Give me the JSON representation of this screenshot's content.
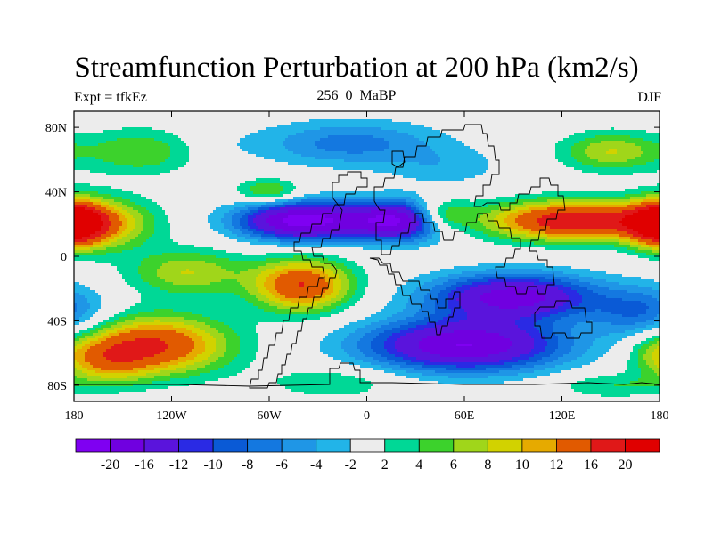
{
  "title": "Streamfunction Perturbation at 200 hPa (km2/s)",
  "left_label": "Expt = tfkEz",
  "center_label": "256_0_MaBP",
  "right_label": "DJF",
  "chart_data": {
    "type": "heatmap",
    "projection": "cylindrical-equidistant",
    "lon_range": [
      -180,
      180
    ],
    "lat_range": [
      -90,
      90
    ],
    "x_ticks": [
      {
        "value": -180,
        "label": "180"
      },
      {
        "value": -120,
        "label": "120W"
      },
      {
        "value": -60,
        "label": "60W"
      },
      {
        "value": 0,
        "label": "0"
      },
      {
        "value": 60,
        "label": "60E"
      },
      {
        "value": 120,
        "label": "120E"
      },
      {
        "value": 180,
        "label": "180"
      }
    ],
    "y_ticks": [
      {
        "value": 80,
        "label": "80N"
      },
      {
        "value": 40,
        "label": "40N"
      },
      {
        "value": 0,
        "label": "0"
      },
      {
        "value": -40,
        "label": "40S"
      },
      {
        "value": -80,
        "label": "80S"
      }
    ],
    "colorbar": {
      "placement": "bottom",
      "labels": [
        "-20",
        "-16",
        "-12",
        "-10",
        "-8",
        "-6",
        "-4",
        "-2",
        "2",
        "4",
        "6",
        "8",
        "10",
        "12",
        "16",
        "20"
      ],
      "colors": [
        "#7f00f2",
        "#7000e0",
        "#5a14dc",
        "#2a2ae4",
        "#0a5ad6",
        "#1478e0",
        "#1f96e6",
        "#22b4e8",
        "#ececec",
        "#00d896",
        "#3cd22c",
        "#a0d61a",
        "#d2d200",
        "#e6aa00",
        "#e15a00",
        "#e01818",
        "#e00000"
      ]
    },
    "field_centers": [
      {
        "lon": -180,
        "lat": 20,
        "value": 18,
        "lon_radius": 18,
        "lat_radius": 14
      },
      {
        "lon": -160,
        "lat": 20,
        "value": 9,
        "lon_radius": 30,
        "lat_radius": 16
      },
      {
        "lon": -140,
        "lat": 65,
        "value": 6,
        "lon_radius": 35,
        "lat_radius": 14
      },
      {
        "lon": -90,
        "lat": 68,
        "value": -1,
        "lon_radius": 25,
        "lat_radius": 12
      },
      {
        "lon": -60,
        "lat": 40,
        "value": 7,
        "lon_radius": 20,
        "lat_radius": 8
      },
      {
        "lon": -40,
        "lat": 22,
        "value": -22,
        "lon_radius": 38,
        "lat_radius": 12
      },
      {
        "lon": 20,
        "lat": 22,
        "value": -20,
        "lon_radius": 30,
        "lat_radius": 12
      },
      {
        "lon": -10,
        "lat": 70,
        "value": -7,
        "lon_radius": 55,
        "lat_radius": 14
      },
      {
        "lon": 50,
        "lat": 55,
        "value": -3,
        "lon_radius": 35,
        "lat_radius": 12
      },
      {
        "lon": 150,
        "lat": 65,
        "value": 8,
        "lon_radius": 30,
        "lat_radius": 12
      },
      {
        "lon": 130,
        "lat": 22,
        "value": 20,
        "lon_radius": 55,
        "lat_radius": 12
      },
      {
        "lon": 45,
        "lat": 25,
        "value": 10,
        "lon_radius": 18,
        "lat_radius": 10
      },
      {
        "lon": -40,
        "lat": -18,
        "value": 16,
        "lon_radius": 30,
        "lat_radius": 16
      },
      {
        "lon": -110,
        "lat": -10,
        "value": 8,
        "lon_radius": 35,
        "lat_radius": 14
      },
      {
        "lon": -130,
        "lat": -55,
        "value": 16,
        "lon_radius": 45,
        "lat_radius": 18
      },
      {
        "lon": -160,
        "lat": -65,
        "value": 8,
        "lon_radius": 25,
        "lat_radius": 14
      },
      {
        "lon": -20,
        "lat": -78,
        "value": 4,
        "lon_radius": 40,
        "lat_radius": 10
      },
      {
        "lon": 90,
        "lat": -25,
        "value": -18,
        "lon_radius": 50,
        "lat_radius": 14
      },
      {
        "lon": 60,
        "lat": -55,
        "value": -20,
        "lon_radius": 60,
        "lat_radius": 16
      },
      {
        "lon": 170,
        "lat": -35,
        "value": -8,
        "lon_radius": 30,
        "lat_radius": 16
      },
      {
        "lon": 150,
        "lat": -80,
        "value": 4,
        "lon_radius": 35,
        "lat_radius": 8
      },
      {
        "lon": 175,
        "lat": -60,
        "value": 3,
        "lon_radius": 15,
        "lat_radius": 12
      }
    ]
  }
}
